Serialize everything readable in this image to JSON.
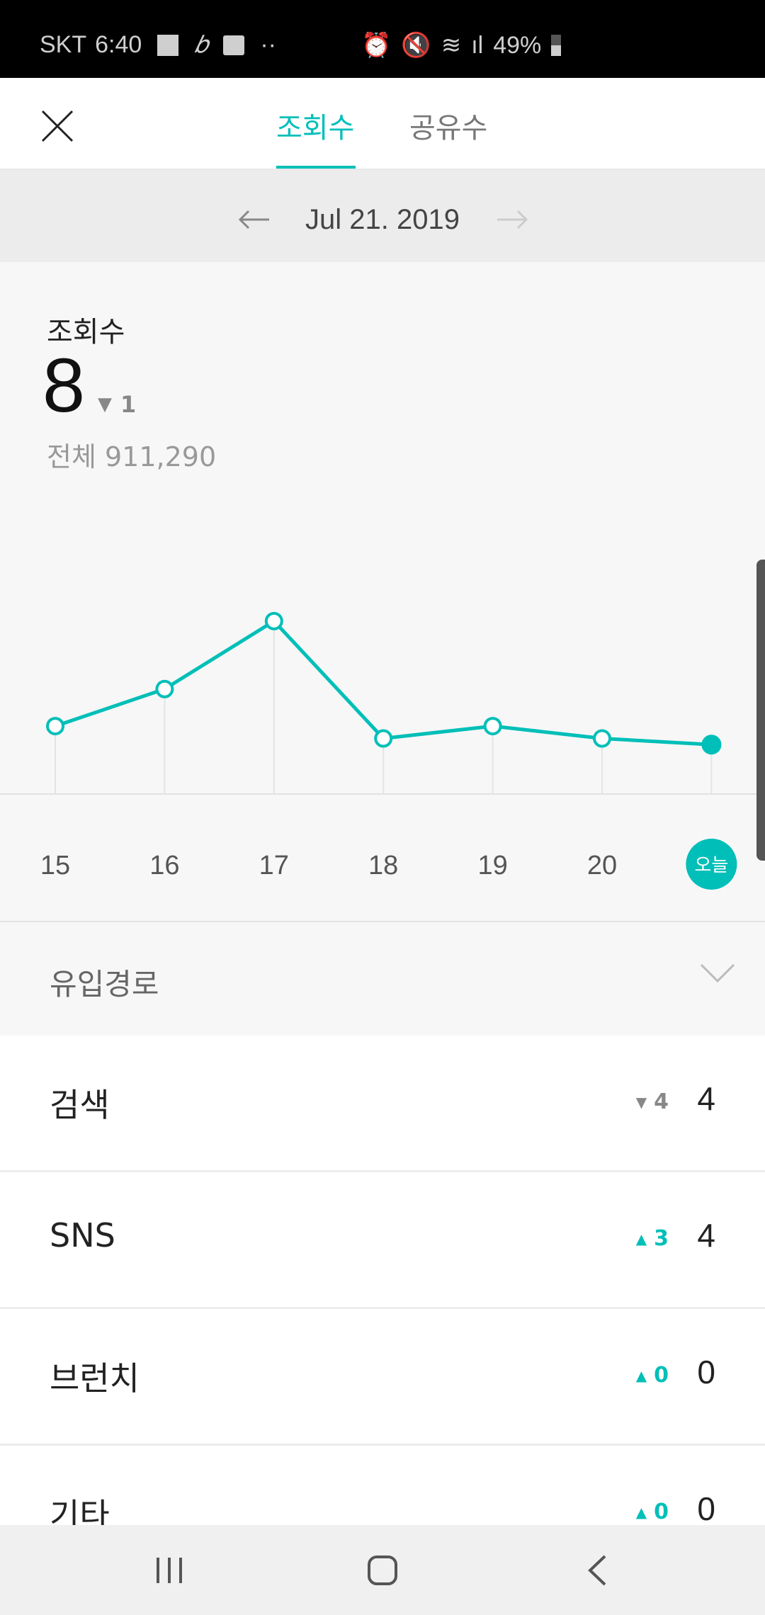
{
  "status_bar": {
    "carrier": "SKT",
    "time": "6:40",
    "battery": "49%",
    "icons": [
      "image-icon",
      "pen-icon",
      "message-icon",
      "more-dots-icon",
      "alarm-icon",
      "mute-icon",
      "wifi-icon",
      "signal-icon",
      "battery-icon"
    ]
  },
  "header": {
    "close_icon": "close-icon",
    "tabs": [
      {
        "label": "조회수",
        "active": true
      },
      {
        "label": "공유수",
        "active": false
      }
    ]
  },
  "date_nav": {
    "date": "Jul 21. 2019",
    "prev_icon": "arrow-left-icon",
    "next_icon": "arrow-right-icon"
  },
  "summary": {
    "title": "조회수",
    "value": "8",
    "change": "1",
    "change_direction": "down",
    "total_label": "전체 911,290"
  },
  "chart_data": {
    "type": "line",
    "categories": [
      "15",
      "16",
      "17",
      "18",
      "19",
      "20",
      "오늘"
    ],
    "values": [
      11,
      17,
      28,
      9,
      11,
      9,
      8
    ],
    "title": "",
    "xlabel": "",
    "ylabel": "",
    "grid": false,
    "color": "#00bfb8",
    "highlight_index": 6
  },
  "source": {
    "title": "유입경로",
    "expand_icon": "chevron-down-icon",
    "items": [
      {
        "label": "검색",
        "change": "4",
        "direction": "down",
        "value": "4"
      },
      {
        "label": "SNS",
        "change": "3",
        "direction": "up",
        "value": "4"
      },
      {
        "label": "브런치",
        "change": "0",
        "direction": "up",
        "value": "0"
      },
      {
        "label": "기타",
        "change": "0",
        "direction": "up",
        "value": "0"
      }
    ]
  },
  "nav_bar": {
    "icons": [
      "recents-icon",
      "home-icon",
      "back-icon"
    ]
  },
  "colors": {
    "accent": "#00bfb8",
    "down": "#888888"
  }
}
